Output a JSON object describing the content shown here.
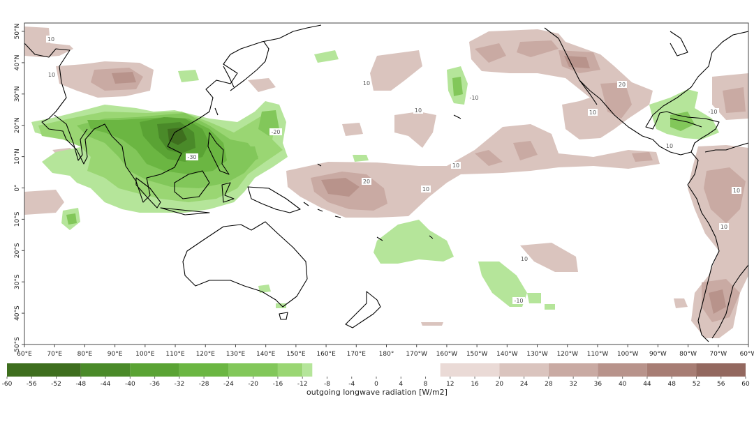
{
  "map": {
    "variable_label": "outgoing longwave radiation [W/m2]",
    "lon_ticks": [
      "60°E",
      "70°E",
      "80°E",
      "90°E",
      "100°E",
      "110°E",
      "120°E",
      "130°E",
      "140°E",
      "150°E",
      "160°E",
      "170°E",
      "180°",
      "170°W",
      "160°W",
      "150°W",
      "140°W",
      "130°W",
      "120°W",
      "110°W",
      "100°W",
      "90°W",
      "80°W",
      "70°W",
      "60°W"
    ],
    "lat_ticks": [
      "50°N",
      "40°N",
      "30°N",
      "20°N",
      "10°N",
      "0°",
      "10°S",
      "20°S",
      "30°S",
      "40°S",
      "50°S"
    ],
    "contour_labels": [
      {
        "id": "c1",
        "text": "10"
      },
      {
        "id": "c2",
        "text": "10"
      },
      {
        "id": "c3",
        "text": "10"
      },
      {
        "id": "c4",
        "text": "-10"
      },
      {
        "id": "c5",
        "text": "10"
      },
      {
        "id": "c6",
        "text": "-20"
      },
      {
        "id": "c7",
        "text": "-30"
      },
      {
        "id": "c8",
        "text": "10"
      },
      {
        "id": "c9",
        "text": "20"
      },
      {
        "id": "c10",
        "text": "10"
      },
      {
        "id": "c11",
        "text": "20"
      },
      {
        "id": "c12",
        "text": "10"
      },
      {
        "id": "c13",
        "text": "-10"
      },
      {
        "id": "c14",
        "text": "10"
      },
      {
        "id": "c15",
        "text": "10"
      },
      {
        "id": "c16",
        "text": "-10"
      },
      {
        "id": "c17",
        "text": "10"
      },
      {
        "id": "c18",
        "text": "10"
      }
    ]
  },
  "colorbar": {
    "labels": [
      "-60",
      "-56",
      "-52",
      "-48",
      "-44",
      "-40",
      "-36",
      "-32",
      "-28",
      "-24",
      "-20",
      "-16",
      "-12",
      "-8",
      "-4",
      "0",
      "4",
      "8",
      "12",
      "16",
      "20",
      "24",
      "28",
      "32",
      "36",
      "40",
      "44",
      "48",
      "52",
      "56",
      "60"
    ],
    "negative_colors": [
      "#3e6e1e",
      "#4a8a29",
      "#5aa334",
      "#6bb642",
      "#82c75a",
      "#9ad673",
      "#b5e59a"
    ],
    "positive_colors": [
      "#eadad6",
      "#dac4be",
      "#c9aaa3",
      "#b8938b",
      "#a77d74",
      "#93685f",
      "#7c544c"
    ]
  },
  "colors": {
    "green_light": "#b5e59a",
    "green_mid": "#82c75a",
    "green_dark": "#5aa334",
    "green_darkest": "#3e6e1e",
    "brown_light": "#dac4be",
    "brown_mid": "#c2a39b",
    "brown_dark": "#a77d74"
  }
}
